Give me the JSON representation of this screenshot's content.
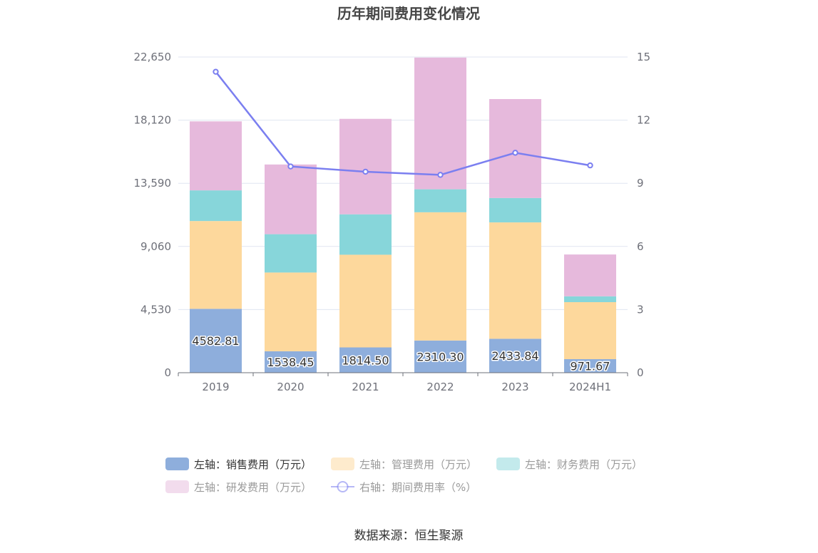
{
  "chart_data": {
    "type": "bar",
    "stacked": true,
    "title": "历年期间费用变化情况",
    "categories": [
      "2019",
      "2020",
      "2021",
      "2022",
      "2023",
      "2024H1"
    ],
    "left_axis": {
      "min": 0,
      "max": 22650,
      "ticks": [
        "0",
        "4,530",
        "9,060",
        "13,590",
        "18,120",
        "22,650"
      ],
      "tick_values": [
        0,
        4530,
        9060,
        13590,
        18120,
        22650
      ]
    },
    "right_axis": {
      "min": 0,
      "max": 15,
      "ticks": [
        "0",
        "3",
        "6",
        "9",
        "12",
        "15"
      ],
      "tick_values": [
        0,
        3,
        6,
        9,
        12,
        15
      ]
    },
    "series": [
      {
        "name": "左轴：销售费用（万元）",
        "axis": "left",
        "color": "#8eaedc",
        "values": [
          4582.81,
          1538.45,
          1814.5,
          2310.3,
          2433.84,
          971.67
        ],
        "labels": [
          "4582.81",
          "1538.45",
          "1814.50",
          "2310.30",
          "2433.84",
          "971.67"
        ]
      },
      {
        "name": "左轴：管理费用（万元）",
        "axis": "left",
        "color": "#fdd89c",
        "values": [
          6300,
          5650,
          6650,
          9200,
          8350,
          4090
        ]
      },
      {
        "name": "左轴：财务费用（万元）",
        "axis": "left",
        "color": "#87d6da",
        "values": [
          2200,
          2750,
          2900,
          1650,
          1750,
          420
        ]
      },
      {
        "name": "左轴：研发费用（万元）",
        "axis": "left",
        "color": "#e6b9dc",
        "values": [
          4950,
          5000,
          6850,
          9450,
          7100,
          3000
        ]
      }
    ],
    "line": {
      "name": "右轴：期间费用率（%）",
      "axis": "right",
      "color": "#7b7ff0",
      "values": [
        14.3,
        9.8,
        9.55,
        9.4,
        10.45,
        9.85
      ]
    },
    "legend_position": "bottom",
    "grid": true
  },
  "footer": {
    "source": "数据来源：恒生聚源"
  }
}
